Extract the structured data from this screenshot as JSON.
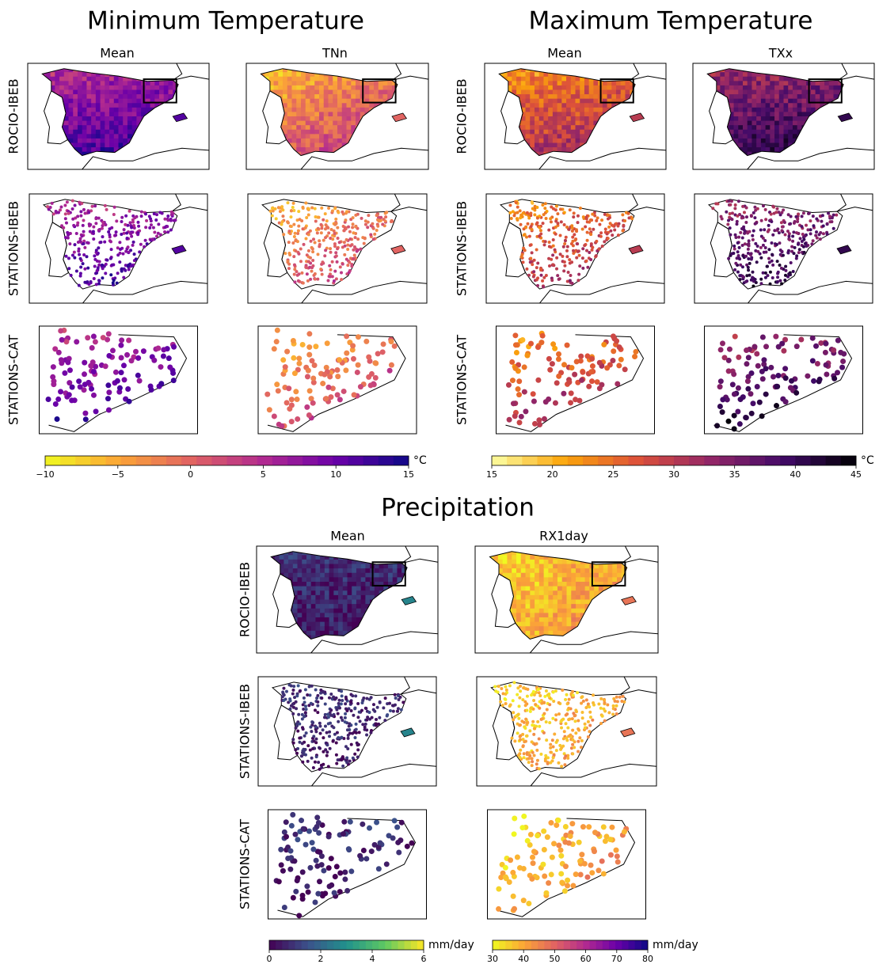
{
  "sections": [
    {
      "title": "Minimum Temperature",
      "columns": [
        "Mean",
        "TNn"
      ],
      "rows": [
        "ROCIO-IBEB",
        "STATIONS-IBEB",
        "STATIONS-CAT"
      ],
      "colorbars": [
        {
          "unit": "°C",
          "lim": [
            -10,
            15
          ],
          "ticks": [
            {
              "value": -10,
              "label": "−10"
            },
            {
              "value": -5,
              "label": "−5"
            },
            0,
            5,
            10,
            15
          ],
          "colors": [
            "#f0f921",
            "#fca636",
            "#e16462",
            "#b12a90",
            "#6a00a8",
            "#0d0887"
          ]
        }
      ]
    },
    {
      "title": "Maximum Temperature",
      "columns": [
        "Mean",
        "TXx"
      ],
      "rows": [
        "ROCIO-IBEB",
        "STATIONS-IBEB",
        "STATIONS-CAT"
      ],
      "colorbars": [
        {
          "unit": "°C",
          "lim": [
            15,
            45
          ],
          "ticks": [
            15,
            20,
            25,
            30,
            35,
            40,
            45
          ],
          "colors": [
            "#fcffa4",
            "#fca50a",
            "#dd513a",
            "#932667",
            "#420a68",
            "#000004"
          ]
        }
      ]
    },
    {
      "title": "Precipitation",
      "columns": [
        "Mean",
        "RX1day"
      ],
      "rows": [
        "ROCIO-IBEB",
        "STATIONS-IBEB",
        "STATIONS-CAT"
      ],
      "colorbars": [
        {
          "unit": "mm/day",
          "lim": [
            0,
            6
          ],
          "ticks": [
            0,
            2,
            4,
            6
          ],
          "colors": [
            "#440154",
            "#3b528b",
            "#21918c",
            "#5ec962",
            "#fde725"
          ]
        },
        {
          "unit": "mm/day",
          "lim": [
            30,
            80
          ],
          "ticks": [
            30,
            40,
            50,
            60,
            70,
            80
          ],
          "colors": [
            "#f0f921",
            "#fca636",
            "#e16462",
            "#b12a90",
            "#6a00a8",
            "#0d0887"
          ]
        }
      ]
    }
  ]
}
